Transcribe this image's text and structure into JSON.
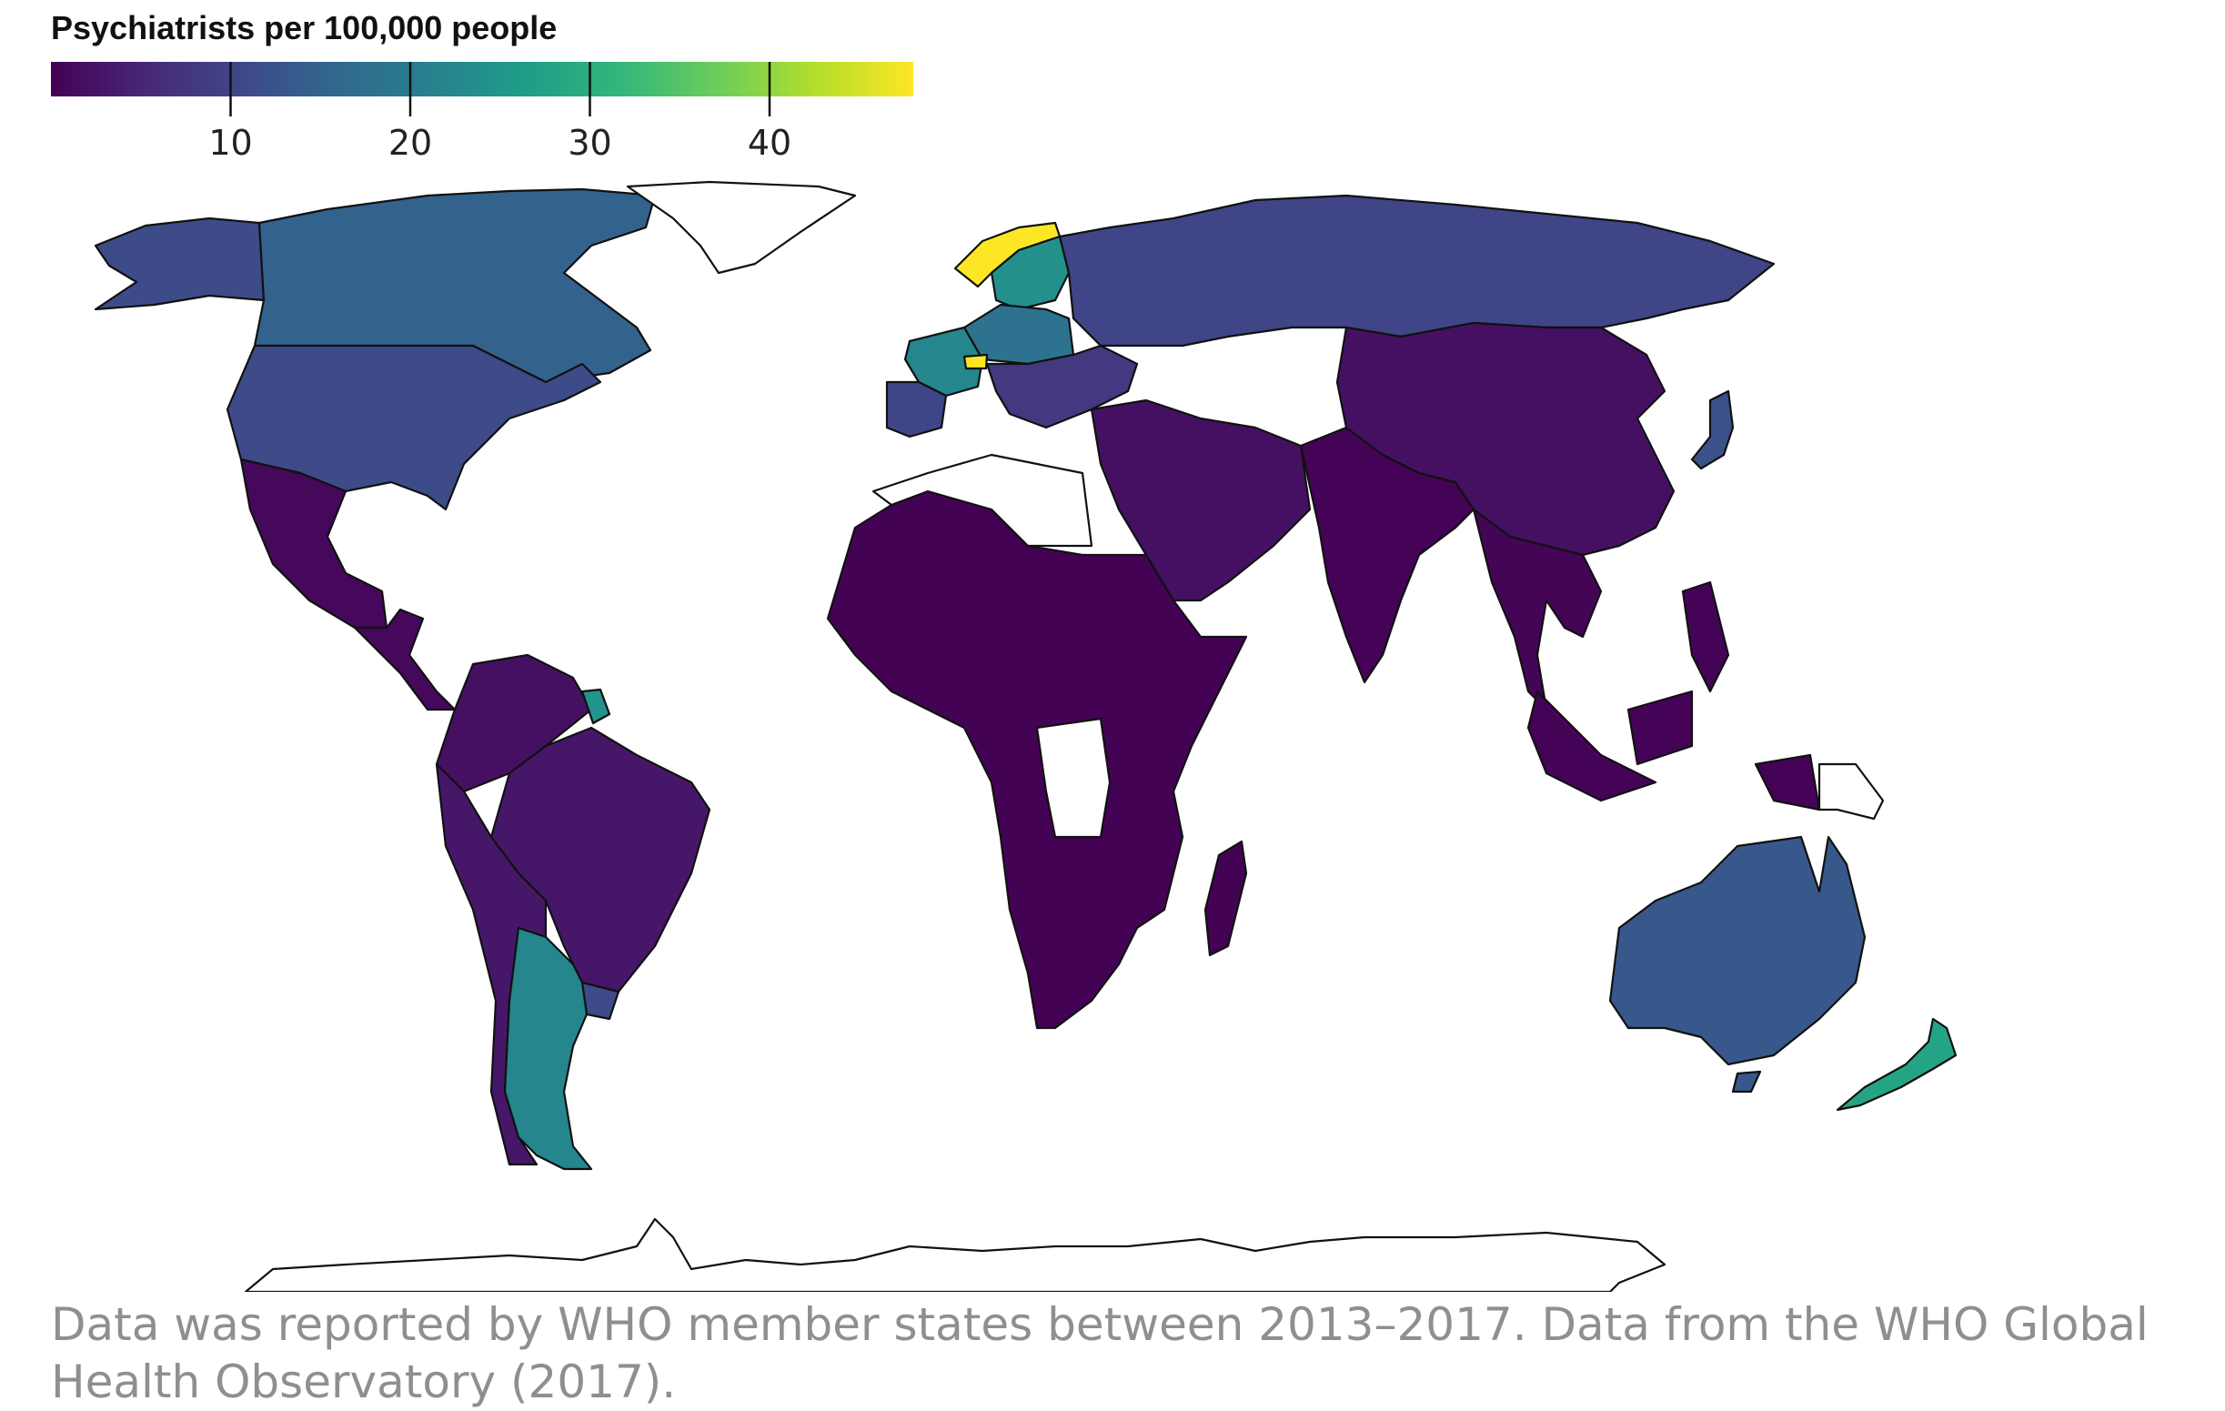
{
  "legend": {
    "title": "Psychiatrists per 100,000 people",
    "min": 0,
    "max": 48,
    "ticks": [
      10,
      20,
      30,
      40
    ],
    "colormap": [
      "#440154",
      "#482878",
      "#3e4989",
      "#31688e",
      "#26828e",
      "#1f9e89",
      "#35b779",
      "#6ece58",
      "#b5de2b",
      "#fde725"
    ]
  },
  "caption": "Data was reported by WHO member states between 2013–2017. Data from the WHO Global Health Observatory (2017).",
  "no_data_color": "#ffffff",
  "chart_data": {
    "type": "choropleth",
    "value_label": "Psychiatrists per 100,000 people",
    "regions": [
      {
        "name": "Canada",
        "value": 15
      },
      {
        "name": "United States",
        "value": 11
      },
      {
        "name": "Alaska",
        "value": 11
      },
      {
        "name": "Mexico",
        "value": 1
      },
      {
        "name": "Central America",
        "value": 1
      },
      {
        "name": "Colombia / Venezuela / Ecuador",
        "value": 2
      },
      {
        "name": "Brazil",
        "value": 3
      },
      {
        "name": "Peru / Bolivia / Chile",
        "value": 3
      },
      {
        "name": "Argentina",
        "value": 22
      },
      {
        "name": "Uruguay",
        "value": 11
      },
      {
        "name": "French Guiana",
        "value": 25
      },
      {
        "name": "Western Europe",
        "value": 18
      },
      {
        "name": "France",
        "value": 22
      },
      {
        "name": "Switzerland",
        "value": 48
      },
      {
        "name": "Norway",
        "value": 48
      },
      {
        "name": "Sweden / Finland",
        "value": 24
      },
      {
        "name": "Iberia",
        "value": 10
      },
      {
        "name": "Eastern Europe",
        "value": 8
      },
      {
        "name": "Russia",
        "value": 10
      },
      {
        "name": "Middle East",
        "value": 2
      },
      {
        "name": "South Asia",
        "value": 0.3
      },
      {
        "name": "China / Mongolia",
        "value": 2
      },
      {
        "name": "Japan",
        "value": 12
      },
      {
        "name": "Southeast Asia",
        "value": 0.5
      },
      {
        "name": "Indonesia / Philippines",
        "value": 0.3
      },
      {
        "name": "Africa",
        "value": 0.1
      },
      {
        "name": "Madagascar",
        "value": 0.1
      },
      {
        "name": "Australia",
        "value": 13
      },
      {
        "name": "New Zealand",
        "value": 28
      }
    ]
  }
}
